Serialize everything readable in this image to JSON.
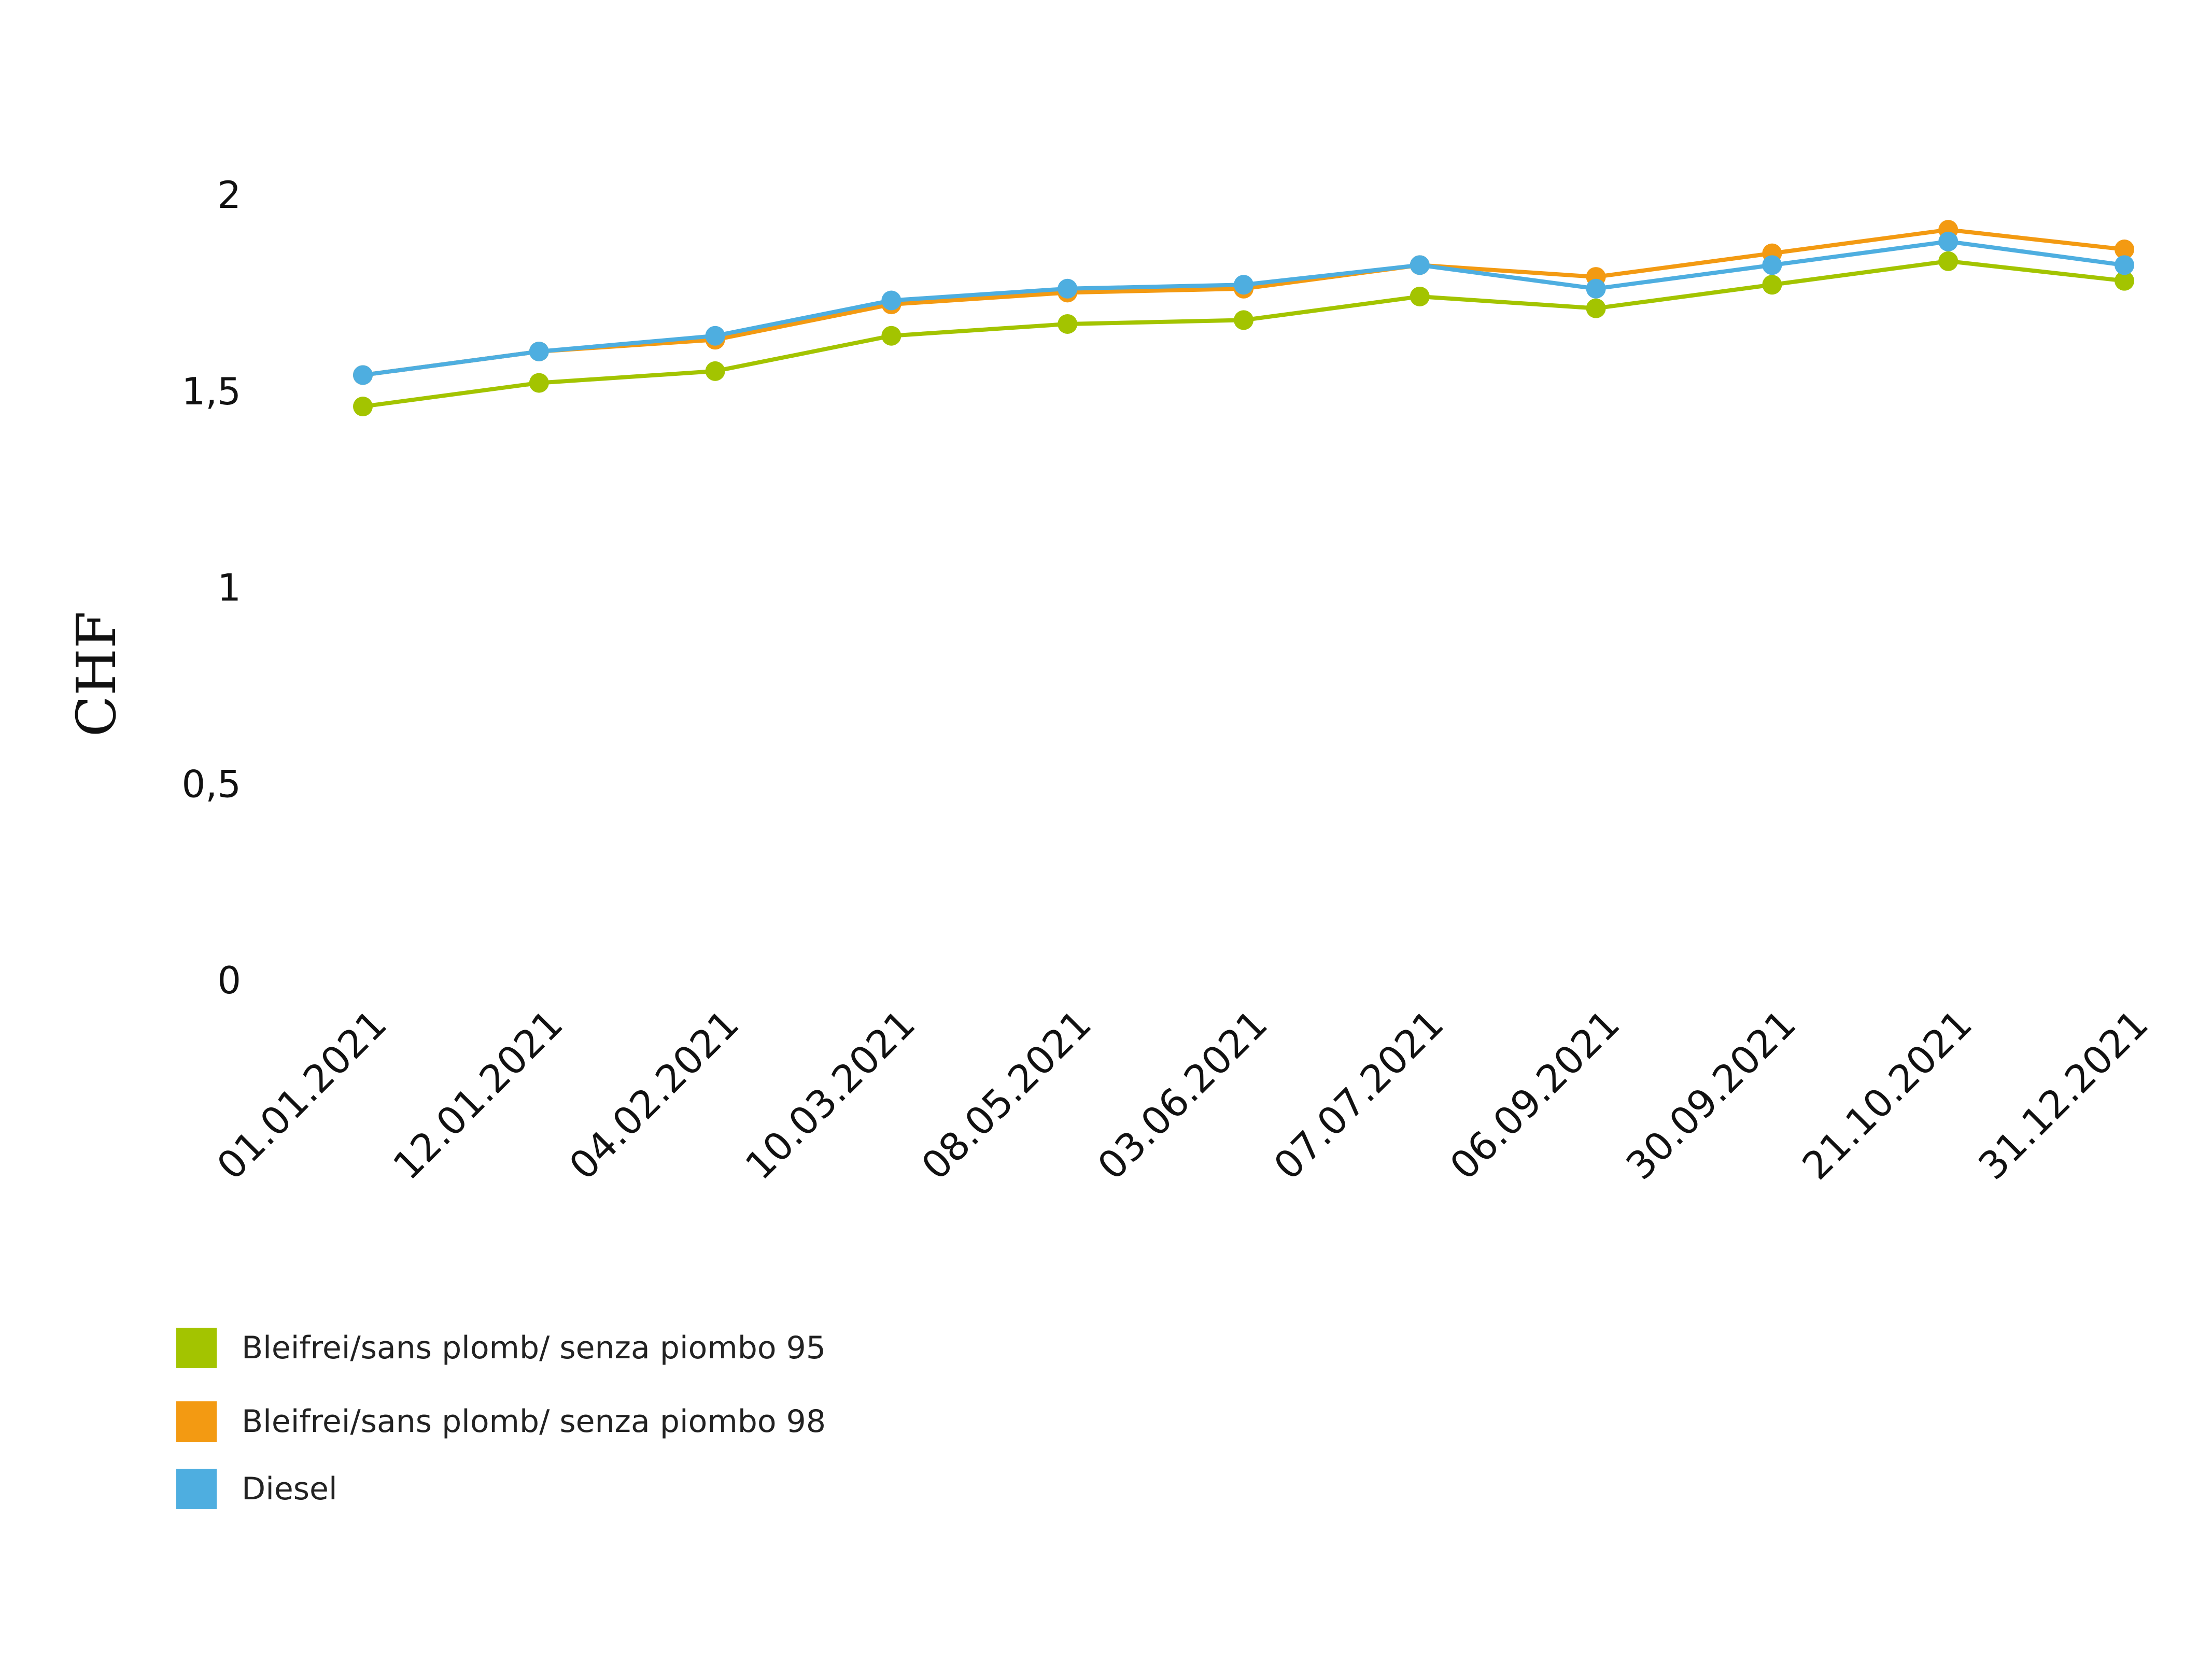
{
  "chart_data": {
    "type": "line",
    "title": "",
    "xlabel": "",
    "ylabel": "CHF",
    "ylim": [
      0,
      2
    ],
    "yticks": [
      "0",
      "0,5",
      "1",
      "1,5",
      "2"
    ],
    "categories": [
      "01.01.2021",
      "12.01.2021",
      "04.02.2021",
      "10.03.2021",
      "08.05.2021",
      "03.06.2021",
      "07.07.2021",
      "06.09.2021",
      "30.09.2021",
      "21.10.2021",
      "31.12.2021"
    ],
    "series": [
      {
        "name": "Bleifrei/sans plomb/ senza piombo 95",
        "color": "#a3c400",
        "values": [
          1.46,
          1.52,
          1.55,
          1.64,
          1.67,
          1.68,
          1.74,
          1.71,
          1.77,
          1.83,
          1.78
        ]
      },
      {
        "name": "Bleifrei/sans plomb/ senza piombo 98",
        "color": "#f39a12",
        "values": [
          1.54,
          1.6,
          1.63,
          1.72,
          1.75,
          1.76,
          1.82,
          1.79,
          1.85,
          1.91,
          1.86
        ]
      },
      {
        "name": "Diesel",
        "color": "#4eaee0",
        "values": [
          1.54,
          1.6,
          1.64,
          1.73,
          1.76,
          1.77,
          1.82,
          1.76,
          1.82,
          1.88,
          1.82
        ]
      }
    ],
    "grid": false,
    "legend_position": "bottom-left"
  }
}
